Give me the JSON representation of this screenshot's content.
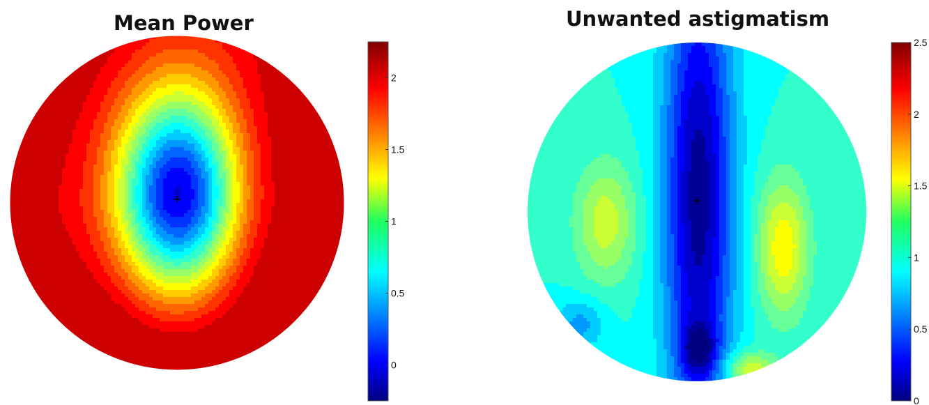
{
  "chart_data": [
    {
      "type": "heatmap",
      "title": "Mean Power",
      "colorbar": {
        "ticks": [
          "0",
          "0.5",
          "1",
          "1.5",
          "2"
        ],
        "tick_values": [
          0,
          0.5,
          1,
          1.5,
          2
        ],
        "range": [
          -0.25,
          2.25
        ]
      },
      "colormap": "jet",
      "contour_levels": 20,
      "marker": "+ at centre of minimum",
      "annotations": {
        "minimum_region": "central-upper",
        "minimum_value": 0.0,
        "maximum_value": 2.05
      }
    },
    {
      "type": "heatmap",
      "title": "Unwanted astigmatism",
      "colorbar": {
        "ticks": [
          "0",
          "0.5",
          "1",
          "1.5",
          "2",
          "2.5"
        ],
        "tick_values": [
          0,
          0.5,
          1,
          1.5,
          2,
          2.5
        ],
        "range": [
          0,
          2.5
        ]
      },
      "colormap": "jet",
      "contour_levels": 20,
      "marker": "+ at centre of minimum",
      "annotations": {
        "minimum_region": "central vertical corridor",
        "minimum_value": 0.05,
        "maximum_value": 1.9
      }
    }
  ]
}
